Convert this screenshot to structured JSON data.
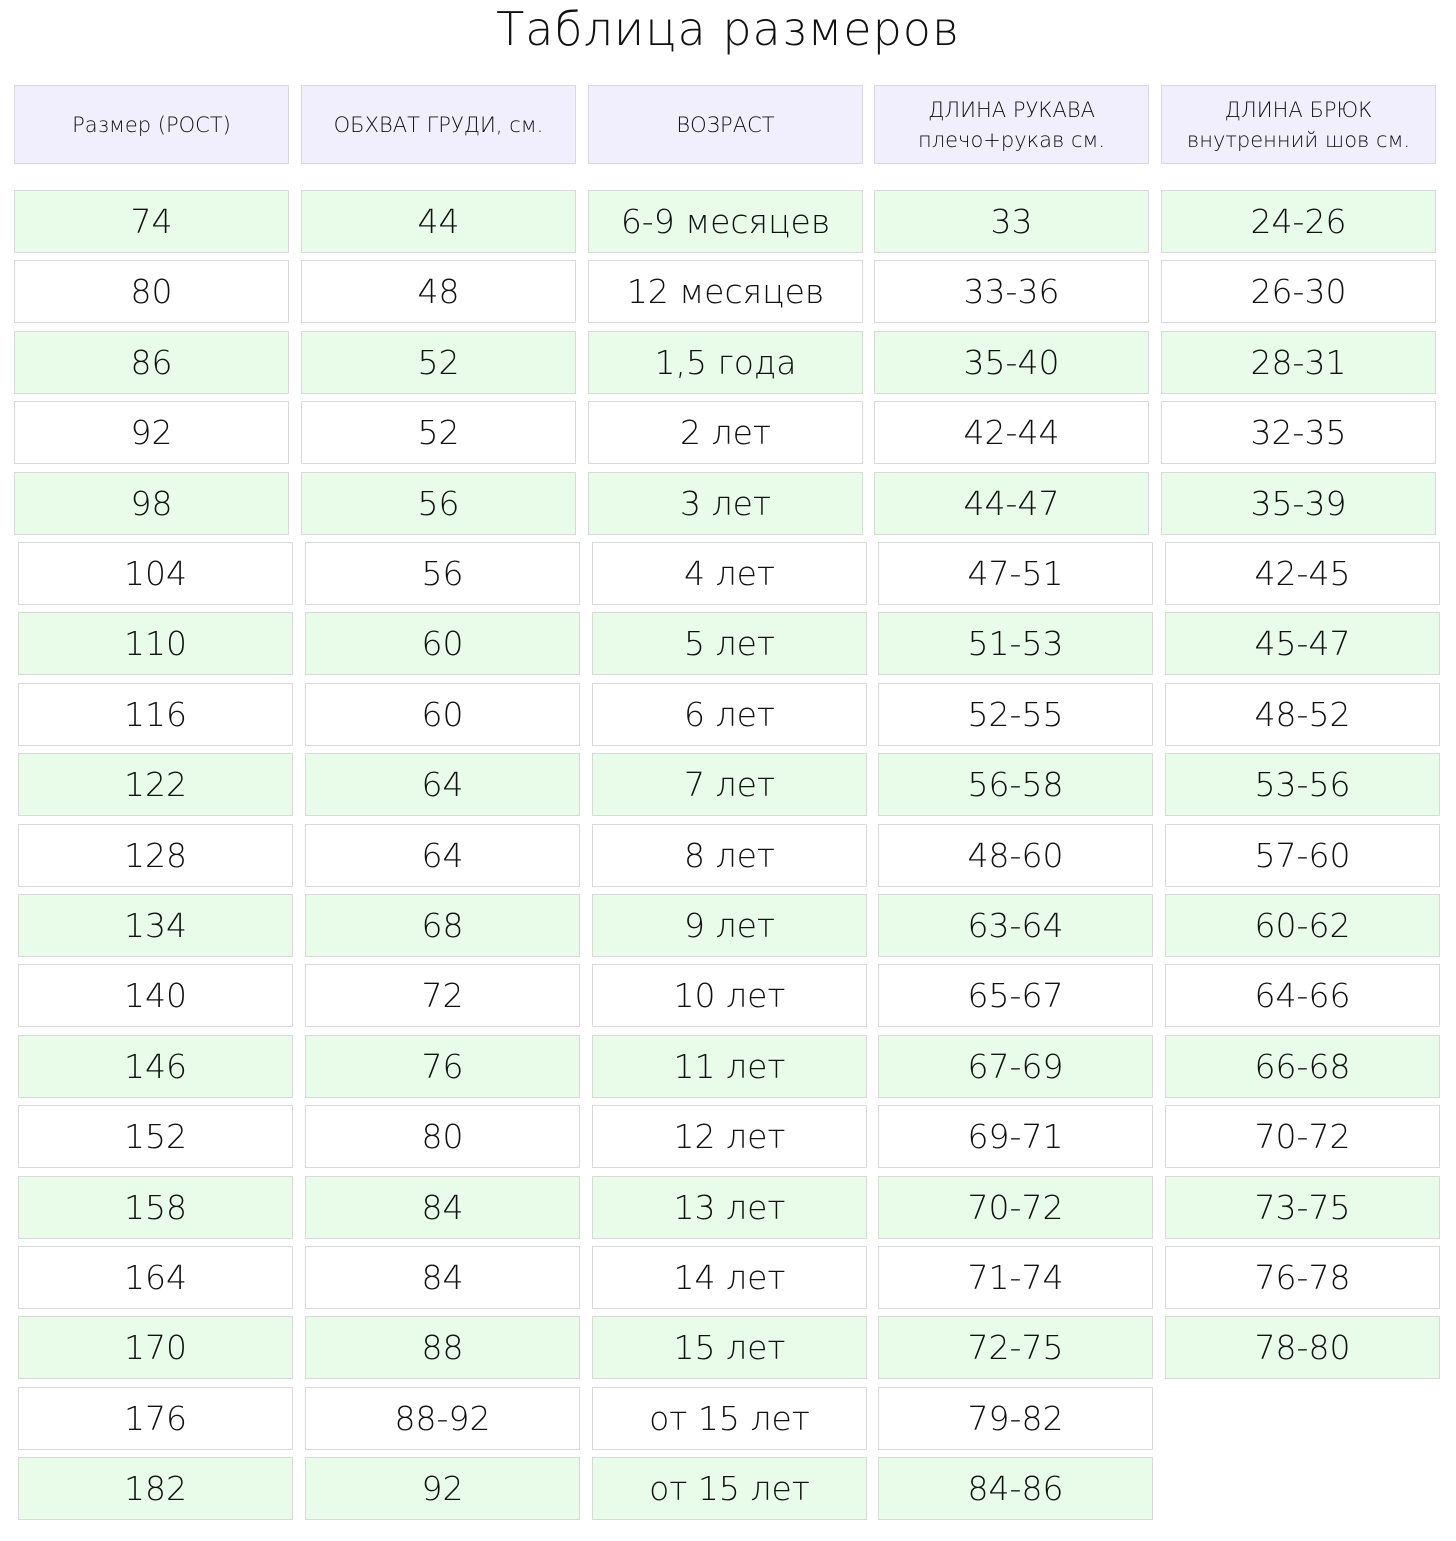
{
  "title": "Таблица размеров",
  "headers": [
    [
      "Размер (РОСТ)"
    ],
    [
      "ОБХВАТ ГРУДИ, см."
    ],
    [
      "ВОЗРАСТ"
    ],
    [
      "ДЛИНА РУКАВА",
      "плечо+рукав см."
    ],
    [
      "ДЛИНА БРЮК",
      "внутренний шов см."
    ]
  ],
  "colors": {
    "header_bg": "#f1effd",
    "row_green": "#e9fce9",
    "row_white": "#ffffff",
    "border": "#d9d9d9"
  },
  "rows": [
    [
      "74",
      "44",
      "6-9 месяцев",
      "33",
      "24-26"
    ],
    [
      "80",
      "48",
      "12 месяцев",
      "33-36",
      "26-30"
    ],
    [
      "86",
      "52",
      "1,5 года",
      "35-40",
      "28-31"
    ],
    [
      "92",
      "52",
      "2 лет",
      "42-44",
      "32-35"
    ],
    [
      "98",
      "56",
      "3 лет",
      "44-47",
      "35-39"
    ],
    [
      "104",
      "56",
      "4 лет",
      "47-51",
      "42-45"
    ],
    [
      "110",
      "60",
      "5 лет",
      "51-53",
      "45-47"
    ],
    [
      "116",
      "60",
      "6 лет",
      "52-55",
      "48-52"
    ],
    [
      "122",
      "64",
      "7 лет",
      "56-58",
      "53-56"
    ],
    [
      "128",
      "64",
      "8 лет",
      "48-60",
      "57-60"
    ],
    [
      "134",
      "68",
      "9 лет",
      "63-64",
      "60-62"
    ],
    [
      "140",
      "72",
      "10 лет",
      "65-67",
      "64-66"
    ],
    [
      "146",
      "76",
      "11 лет",
      "67-69",
      "66-68"
    ],
    [
      "152",
      "80",
      "12 лет",
      "69-71",
      "70-72"
    ],
    [
      "158",
      "84",
      "13 лет",
      "70-72",
      "73-75"
    ],
    [
      "164",
      "84",
      "14 лет",
      "71-74",
      "76-78"
    ],
    [
      "170",
      "88",
      "15 лет",
      "72-75",
      "78-80"
    ],
    [
      "176",
      "88-92",
      "от 15 лет",
      "79-82",
      null
    ],
    [
      "182",
      "92",
      "от 15 лет",
      "84-86",
      null
    ]
  ]
}
